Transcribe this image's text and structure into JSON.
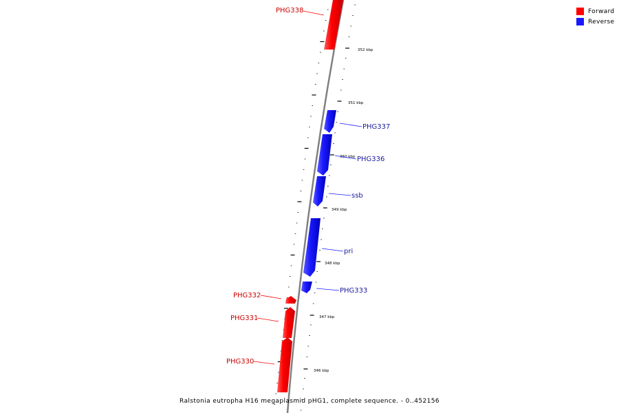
{
  "legend": {
    "forward_label": "Forward",
    "reverse_label": "Reverse",
    "forward_color": "#ff0000",
    "reverse_color": "#1a1aff"
  },
  "caption": "Ralstonia eutropha H16 megaplasmid pHG1, complete sequence. - 0..452156",
  "ruler": {
    "unit": "kbp",
    "labels": [
      "352 kbp",
      "351 kbp",
      "350 kbp",
      "349 kbp",
      "348 kbp",
      "347 kbp",
      "346 kbp"
    ]
  },
  "features": [
    {
      "name": "PHG338",
      "strand": "forward"
    },
    {
      "name": "PHG337",
      "strand": "reverse"
    },
    {
      "name": "PHG336",
      "strand": "reverse"
    },
    {
      "name": "ssb",
      "strand": "reverse"
    },
    {
      "name": "pri",
      "strand": "reverse"
    },
    {
      "name": "PHG333",
      "strand": "reverse"
    },
    {
      "name": "PHG332",
      "strand": "forward"
    },
    {
      "name": "PHG331",
      "strand": "forward"
    },
    {
      "name": "PHG330",
      "strand": "forward"
    }
  ]
}
